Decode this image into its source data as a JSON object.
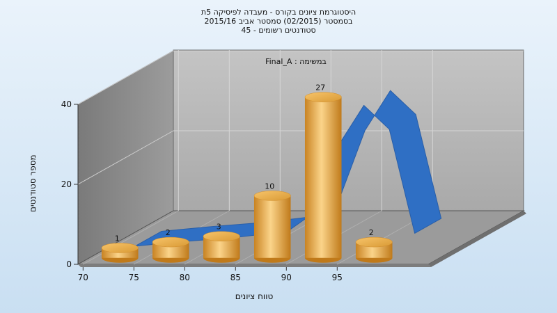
{
  "chart_title": {
    "line1": "היסטוגרמת ציונים בקורס - מעבדה לפיסיקה 5ת",
    "line2": "בסמסטר  (02/2015)  סמסטר אביב 2015/16",
    "line3": "סטודנטים רשומים - 45"
  },
  "task_label": "במשימה : Final_A",
  "chart_data": {
    "type": "bar",
    "title": "היסטוגרמת ציונים בקורס - מעבדה לפיסיקה 5ת",
    "xlabel": "טווח ציונים",
    "ylabel": "מספר סטודנטים",
    "categories": [
      70,
      75,
      80,
      85,
      90,
      95
    ],
    "bins": [
      {
        "x": 72.5,
        "value": 1
      },
      {
        "x": 77.5,
        "value": 2
      },
      {
        "x": 82.5,
        "value": 3
      },
      {
        "x": 87.5,
        "value": 10
      },
      {
        "x": 92.5,
        "value": 27
      },
      {
        "x": 97.5,
        "value": 2
      }
    ],
    "x_ticks": [
      70,
      75,
      80,
      85,
      90,
      95
    ],
    "y_ticks": [
      0,
      20,
      40
    ],
    "ylim": [
      0,
      40
    ],
    "curve": {
      "x": [
        72.5,
        77.5,
        82.5,
        87.5,
        90,
        92.5,
        95,
        97.5,
        100
      ],
      "y": [
        0.8,
        2,
        3,
        4.5,
        9,
        26,
        36,
        30,
        4
      ]
    },
    "grid": true,
    "style": "3d",
    "colors": {
      "bar": "#e9a541",
      "curve": "#2f6fc4",
      "back_wall": "#b9b9b9",
      "side_wall": "#8a8a8a",
      "floor": "#9a9a9a"
    }
  }
}
